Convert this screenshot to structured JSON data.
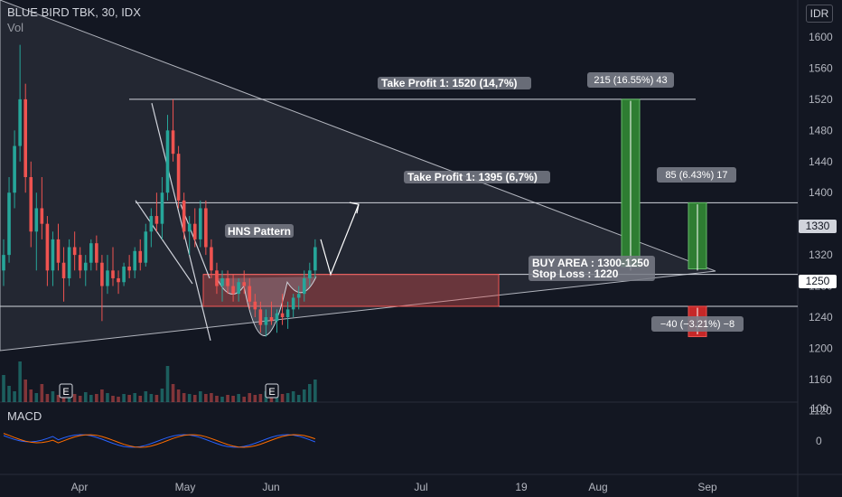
{
  "header": {
    "symbol_line": "BLUE BIRD TBK, 30, IDX",
    "volume_label": "Vol",
    "currency": "IDR",
    "macd_label": "MACD"
  },
  "chart_data": {
    "type": "candlestick",
    "x_labels": [
      "Apr",
      "May",
      "Jun",
      "Jul",
      "19",
      "Aug",
      "Sep"
    ],
    "price_axis": {
      "ticks": [
        1600,
        1560,
        1520,
        1480,
        1440,
        1400,
        1360,
        1320,
        1280,
        1240,
        1200,
        1160,
        1120
      ],
      "range": [
        1090,
        1620
      ]
    },
    "macd_axis": {
      "ticks": [
        100,
        0
      ]
    },
    "last_price": "1330",
    "crosshair_price": "1250",
    "series": [
      {
        "o": 1300,
        "h": 1340,
        "l": 1280,
        "c": 1320
      },
      {
        "o": 1320,
        "h": 1420,
        "l": 1310,
        "c": 1400
      },
      {
        "o": 1400,
        "h": 1480,
        "l": 1380,
        "c": 1460
      },
      {
        "o": 1460,
        "h": 1590,
        "l": 1440,
        "c": 1520
      },
      {
        "o": 1520,
        "h": 1540,
        "l": 1400,
        "c": 1420
      },
      {
        "o": 1420,
        "h": 1440,
        "l": 1330,
        "c": 1350
      },
      {
        "o": 1350,
        "h": 1400,
        "l": 1300,
        "c": 1380
      },
      {
        "o": 1380,
        "h": 1420,
        "l": 1340,
        "c": 1360
      },
      {
        "o": 1360,
        "h": 1370,
        "l": 1280,
        "c": 1300
      },
      {
        "o": 1300,
        "h": 1350,
        "l": 1280,
        "c": 1340
      },
      {
        "o": 1340,
        "h": 1360,
        "l": 1300,
        "c": 1310
      },
      {
        "o": 1310,
        "h": 1330,
        "l": 1260,
        "c": 1290
      },
      {
        "o": 1290,
        "h": 1340,
        "l": 1280,
        "c": 1330
      },
      {
        "o": 1330,
        "h": 1350,
        "l": 1300,
        "c": 1320
      },
      {
        "o": 1320,
        "h": 1330,
        "l": 1290,
        "c": 1300
      },
      {
        "o": 1300,
        "h": 1320,
        "l": 1280,
        "c": 1310
      },
      {
        "o": 1310,
        "h": 1340,
        "l": 1300,
        "c": 1335
      },
      {
        "o": 1335,
        "h": 1345,
        "l": 1300,
        "c": 1310
      },
      {
        "o": 1310,
        "h": 1320,
        "l": 1235,
        "c": 1280
      },
      {
        "o": 1280,
        "h": 1320,
        "l": 1270,
        "c": 1300
      },
      {
        "o": 1300,
        "h": 1330,
        "l": 1280,
        "c": 1290
      },
      {
        "o": 1290,
        "h": 1300,
        "l": 1270,
        "c": 1285
      },
      {
        "o": 1285,
        "h": 1310,
        "l": 1280,
        "c": 1305
      },
      {
        "o": 1305,
        "h": 1320,
        "l": 1290,
        "c": 1300
      },
      {
        "o": 1300,
        "h": 1330,
        "l": 1290,
        "c": 1325
      },
      {
        "o": 1325,
        "h": 1340,
        "l": 1300,
        "c": 1310
      },
      {
        "o": 1310,
        "h": 1360,
        "l": 1305,
        "c": 1350
      },
      {
        "o": 1350,
        "h": 1380,
        "l": 1330,
        "c": 1370
      },
      {
        "o": 1370,
        "h": 1400,
        "l": 1350,
        "c": 1360
      },
      {
        "o": 1360,
        "h": 1420,
        "l": 1340,
        "c": 1400
      },
      {
        "o": 1400,
        "h": 1500,
        "l": 1390,
        "c": 1480
      },
      {
        "o": 1480,
        "h": 1520,
        "l": 1440,
        "c": 1450
      },
      {
        "o": 1450,
        "h": 1460,
        "l": 1380,
        "c": 1390
      },
      {
        "o": 1390,
        "h": 1400,
        "l": 1340,
        "c": 1350
      },
      {
        "o": 1350,
        "h": 1370,
        "l": 1320,
        "c": 1360
      },
      {
        "o": 1360,
        "h": 1380,
        "l": 1330,
        "c": 1340
      },
      {
        "o": 1340,
        "h": 1390,
        "l": 1330,
        "c": 1380
      },
      {
        "o": 1380,
        "h": 1390,
        "l": 1320,
        "c": 1330
      },
      {
        "o": 1330,
        "h": 1340,
        "l": 1290,
        "c": 1300
      },
      {
        "o": 1300,
        "h": 1310,
        "l": 1270,
        "c": 1280
      },
      {
        "o": 1280,
        "h": 1300,
        "l": 1260,
        "c": 1290
      },
      {
        "o": 1290,
        "h": 1300,
        "l": 1270,
        "c": 1280
      },
      {
        "o": 1280,
        "h": 1295,
        "l": 1260,
        "c": 1270
      },
      {
        "o": 1270,
        "h": 1290,
        "l": 1260,
        "c": 1285
      },
      {
        "o": 1285,
        "h": 1300,
        "l": 1270,
        "c": 1280
      },
      {
        "o": 1280,
        "h": 1290,
        "l": 1250,
        "c": 1260
      },
      {
        "o": 1260,
        "h": 1270,
        "l": 1240,
        "c": 1250
      },
      {
        "o": 1250,
        "h": 1260,
        "l": 1220,
        "c": 1230
      },
      {
        "o": 1230,
        "h": 1250,
        "l": 1215,
        "c": 1240
      },
      {
        "o": 1240,
        "h": 1260,
        "l": 1230,
        "c": 1235
      },
      {
        "o": 1235,
        "h": 1250,
        "l": 1220,
        "c": 1245
      },
      {
        "o": 1245,
        "h": 1270,
        "l": 1230,
        "c": 1240
      },
      {
        "o": 1240,
        "h": 1260,
        "l": 1225,
        "c": 1250
      },
      {
        "o": 1250,
        "h": 1270,
        "l": 1240,
        "c": 1265
      },
      {
        "o": 1265,
        "h": 1280,
        "l": 1250,
        "c": 1270
      },
      {
        "o": 1270,
        "h": 1300,
        "l": 1260,
        "c": 1290
      },
      {
        "o": 1290,
        "h": 1310,
        "l": 1280,
        "c": 1300
      },
      {
        "o": 1300,
        "h": 1340,
        "l": 1290,
        "c": 1330
      }
    ],
    "volume": [
      30,
      18,
      12,
      45,
      25,
      14,
      10,
      20,
      9,
      12,
      8,
      15,
      10,
      9,
      7,
      11,
      8,
      9,
      14,
      10,
      7,
      6,
      9,
      8,
      10,
      7,
      12,
      9,
      8,
      15,
      40,
      20,
      14,
      10,
      9,
      8,
      12,
      9,
      10,
      7,
      6,
      8,
      7,
      9,
      6,
      10,
      8,
      9,
      12,
      8,
      7,
      9,
      10,
      12,
      8,
      14,
      20,
      25
    ],
    "annotations": {
      "tp1_label": "Take Profit 1:  1520 (14,7%)",
      "tp2_label": "Take Profit 1:  1395 (6,7%)",
      "hns_label": "HNS Pattern",
      "buy_label": "BUY AREA : 1300-1250",
      "stop_label": "Stop Loss : 1220",
      "badge1": "215 (16.55%) 43",
      "badge2": "85 (6.43%) 17",
      "badge3": "−40 (−3.21%) −8",
      "earnings_markers": [
        "E",
        "E"
      ]
    },
    "colors": {
      "up": "#26a69a",
      "down": "#ef5350",
      "bg": "#131722",
      "grid": "#2a2e39",
      "range_green": "#2e7d32",
      "range_red": "#c62828"
    }
  }
}
